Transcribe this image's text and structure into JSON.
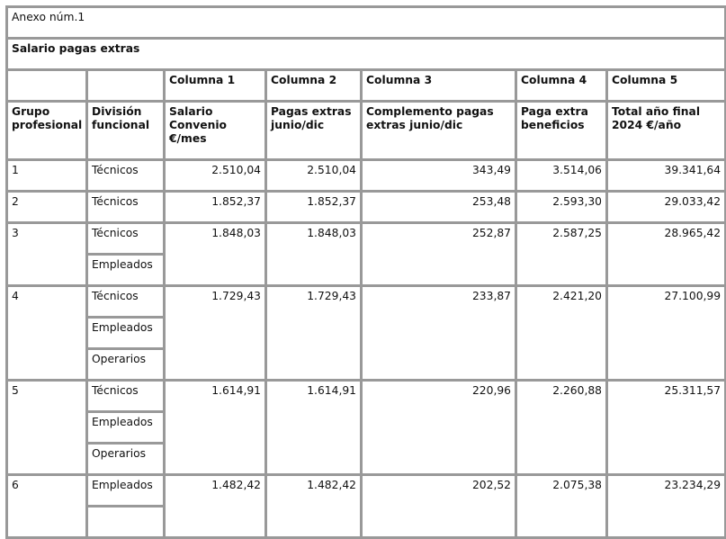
{
  "annex": "Anexo núm.1",
  "title": "Salario pagas extras",
  "column_numbers": [
    "Columna 1",
    "Columna 2",
    "Columna 3",
    "Columna 4",
    "Columna 5"
  ],
  "headers": {
    "grupo": "Grupo profesional",
    "division": "División funcional",
    "col1": "Salario Convenio €/mes",
    "col2": "Pagas extras junio/dic",
    "col3": "Complemento pagas extras junio/dic",
    "col4": "Paga extra beneficios",
    "col5": "Total año final 2024 €/año"
  },
  "rows": [
    {
      "grupo": "1",
      "divisiones": [
        "Técnicos"
      ],
      "values": [
        "2.510,04",
        "2.510,04",
        "343,49",
        "3.514,06",
        "39.341,64"
      ]
    },
    {
      "grupo": "2",
      "divisiones": [
        "Técnicos"
      ],
      "values": [
        "1.852,37",
        "1.852,37",
        "253,48",
        "2.593,30",
        "29.033,42"
      ]
    },
    {
      "grupo": "3",
      "divisiones": [
        "Técnicos",
        "Empleados"
      ],
      "values": [
        "1.848,03",
        "1.848,03",
        "252,87",
        "2.587,25",
        "28.965,42"
      ]
    },
    {
      "grupo": "4",
      "divisiones": [
        "Técnicos",
        "Empleados",
        "Operarios"
      ],
      "values": [
        "1.729,43",
        "1.729,43",
        "233,87",
        "2.421,20",
        "27.100,99"
      ]
    },
    {
      "grupo": "5",
      "divisiones": [
        "Técnicos",
        "Empleados",
        "Operarios"
      ],
      "values": [
        "1.614,91",
        "1.614,91",
        "220,96",
        "2.260,88",
        "25.311,57"
      ]
    },
    {
      "grupo": "6",
      "divisiones": [
        "Empleados",
        ""
      ],
      "values": [
        "1.482,42",
        "1.482,42",
        "202,52",
        "2.075,38",
        "23.234,29"
      ]
    }
  ]
}
